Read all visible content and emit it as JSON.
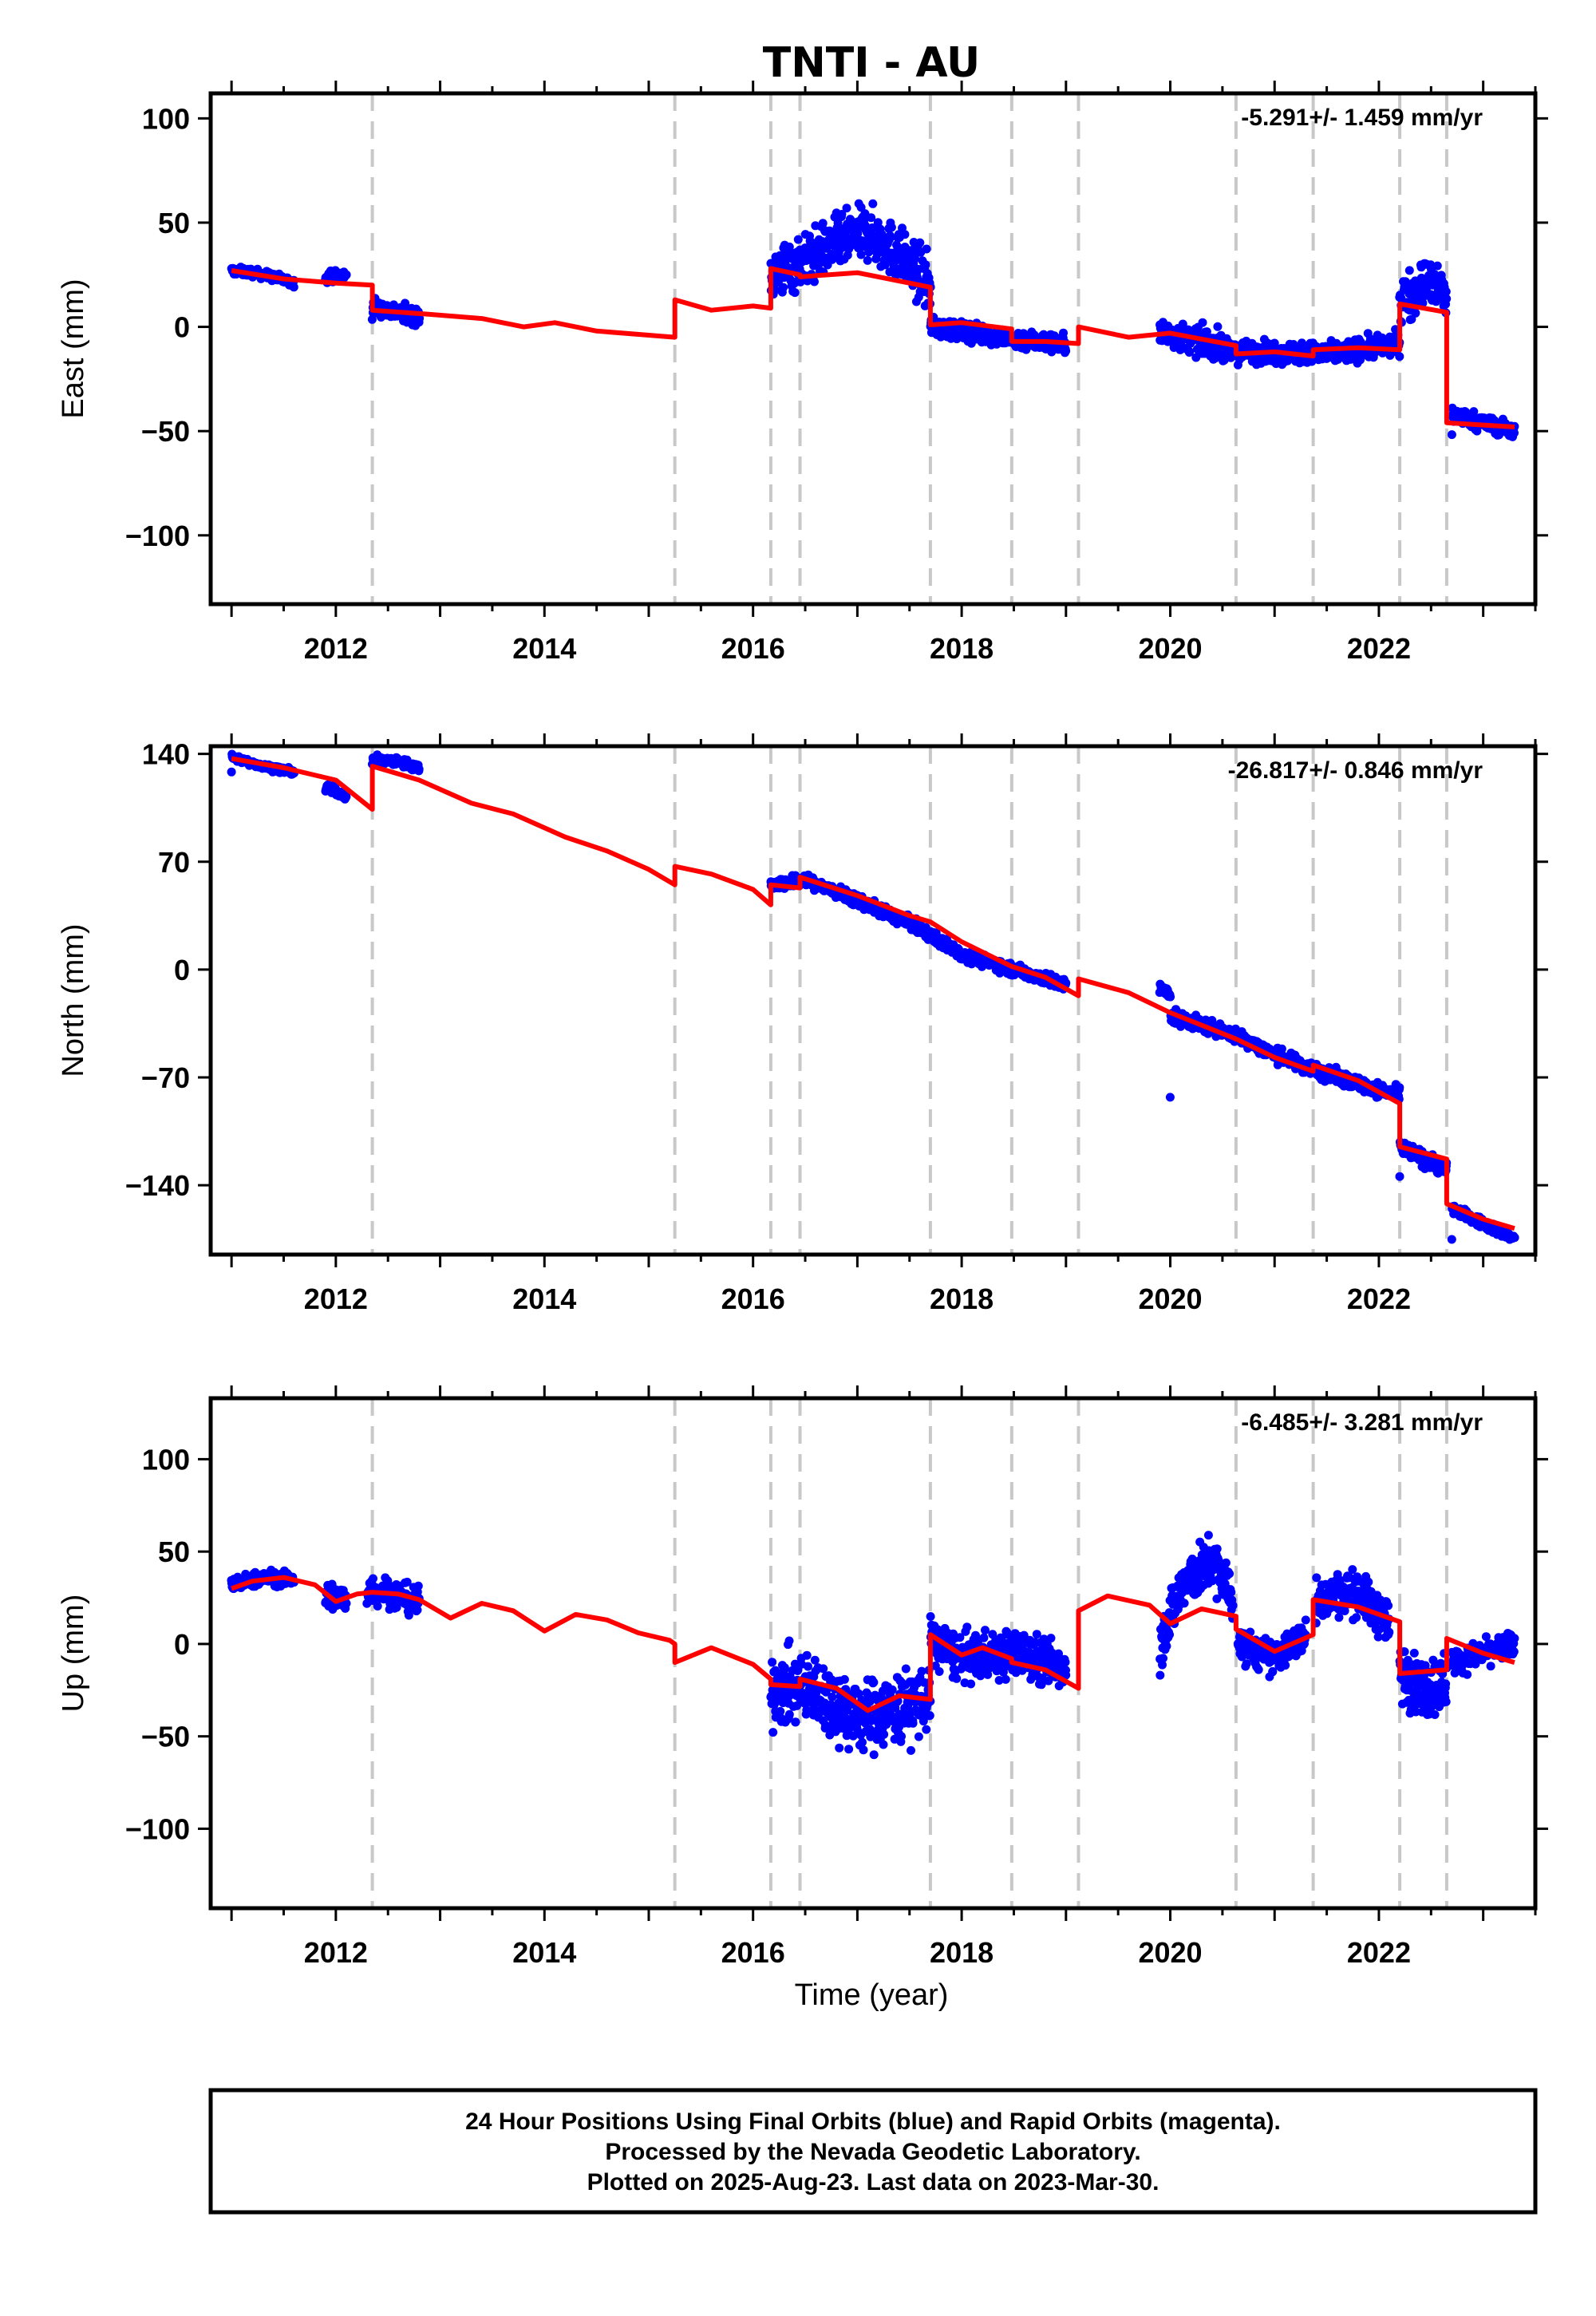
{
  "title": "TNTI - AU",
  "xlabel": "Time (year)",
  "colors": {
    "data": "#0000ff",
    "model": "#ff0000",
    "events": "#c8c8c8",
    "frame": "#000000"
  },
  "footer": {
    "line1": "24 Hour Positions Using Final Orbits (blue) and Rapid Orbits (magenta).",
    "line2": "Processed by the Nevada Geodetic Laboratory.",
    "line3": "Plotted on 2025-Aug-23. Last data on 2023-Mar-30."
  },
  "chart_data": [
    {
      "type": "scatter",
      "ylabel": "East (mm)",
      "rate_label": "-5.291+/- 1.459 mm/yr",
      "xlim": [
        2010.8,
        2023.5
      ],
      "ylim": [
        -133,
        112
      ],
      "x_ticks": [
        2012,
        2014,
        2016,
        2018,
        2020,
        2022
      ],
      "x_tick_labels": [
        "2012",
        "2014",
        "2016",
        "2018",
        "2020",
        "2022"
      ],
      "y_ticks": [
        -100,
        -50,
        0,
        50,
        100
      ],
      "y_tick_labels": [
        "−100",
        "−50",
        "0",
        "50",
        "100"
      ],
      "event_lines": [
        2012.35,
        2015.25,
        2016.17,
        2016.45,
        2017.7,
        2018.48,
        2019.12,
        2020.63,
        2021.37,
        2022.2,
        2022.65
      ],
      "data_segments": [
        {
          "x": [
            2011.0,
            2011.2,
            2011.4,
            2011.6
          ],
          "y": [
            27,
            26,
            24,
            21
          ],
          "spread": 3
        },
        {
          "x": [
            2011.9,
            2012.1
          ],
          "y": [
            24,
            25
          ],
          "spread": 4
        },
        {
          "x": [
            2012.35,
            2012.5,
            2012.8
          ],
          "y": [
            10,
            8,
            5
          ],
          "spread": 6
        },
        {
          "x": [
            2016.17,
            2016.5,
            2016.8,
            2017.1,
            2017.4,
            2017.7
          ],
          "y": [
            25,
            32,
            40,
            45,
            35,
            20
          ],
          "spread": 20
        },
        {
          "x": [
            2017.7,
            2018.0,
            2018.5,
            2019.0
          ],
          "y": [
            0,
            -2,
            -6,
            -8
          ],
          "spread": 7
        },
        {
          "x": [
            2019.9,
            2020.2,
            2020.5
          ],
          "y": [
            -3,
            -6,
            -9
          ],
          "spread": 10
        },
        {
          "x": [
            2020.5,
            2021.0,
            2021.5,
            2022.2
          ],
          "y": [
            -12,
            -12,
            -13,
            -8
          ],
          "spread": 8
        },
        {
          "x": [
            2022.2,
            2022.45,
            2022.65
          ],
          "y": [
            12,
            22,
            15
          ],
          "spread": 18
        },
        {
          "x": [
            2022.7,
            2023.3
          ],
          "y": [
            -42,
            -50
          ],
          "spread": 6
        }
      ],
      "model": {
        "x": [
          2011.0,
          2011.5,
          2012.0,
          2012.35,
          2012.35,
          2012.9,
          2013.4,
          2013.8,
          2014.1,
          2014.5,
          2015.0,
          2015.25,
          2015.25,
          2015.6,
          2016.0,
          2016.17,
          2016.17,
          2016.45,
          2016.45,
          2017.0,
          2017.7,
          2017.7,
          2018.0,
          2018.48,
          2018.48,
          2018.8,
          2019.12,
          2019.12,
          2019.6,
          2020.0,
          2020.63,
          2020.63,
          2021.0,
          2021.37,
          2021.37,
          2021.8,
          2022.2,
          2022.2,
          2022.65,
          2022.65,
          2023.3
        ],
        "y": [
          27,
          23,
          21,
          20,
          8,
          6,
          4,
          0,
          2,
          -2,
          -4,
          -5,
          13,
          8,
          10,
          9,
          28,
          25,
          24,
          26,
          19,
          1,
          2,
          -1,
          -7,
          -7,
          -8,
          0,
          -5,
          -3,
          -9,
          -13,
          -12,
          -14,
          -11,
          -10,
          -11,
          11,
          7,
          -46,
          -48
        ]
      }
    },
    {
      "type": "scatter",
      "ylabel": "North (mm)",
      "rate_label": "-26.817+/- 0.846 mm/yr",
      "xlim": [
        2010.8,
        2023.5
      ],
      "ylim": [
        -185,
        145
      ],
      "x_ticks": [
        2012,
        2014,
        2016,
        2018,
        2020,
        2022
      ],
      "x_tick_labels": [
        "2012",
        "2014",
        "2016",
        "2018",
        "2020",
        "2022"
      ],
      "y_ticks": [
        -140,
        -70,
        0,
        70,
        140
      ],
      "y_tick_labels": [
        "−140",
        "−70",
        "0",
        "70",
        "140"
      ],
      "event_lines": [
        2012.35,
        2015.25,
        2016.17,
        2016.45,
        2017.7,
        2018.48,
        2019.12,
        2020.63,
        2021.37,
        2022.2,
        2022.65
      ],
      "data_segments": [
        {
          "x": [
            2011.0,
            2011.3,
            2011.6
          ],
          "y": [
            138,
            132,
            128
          ],
          "spread": 3
        },
        {
          "x": [
            2011.9,
            2012.1
          ],
          "y": [
            118,
            113
          ],
          "spread": 4
        },
        {
          "x": [
            2012.35,
            2012.6,
            2012.8
          ],
          "y": [
            136,
            135,
            131
          ],
          "spread": 4
        },
        {
          "x": [
            2016.17,
            2016.5,
            2017.0,
            2017.5,
            2018.0,
            2018.5,
            2019.0
          ],
          "y": [
            55,
            58,
            45,
            30,
            10,
            0,
            -10
          ],
          "spread": 6
        },
        {
          "x": [
            2019.9,
            2020.0
          ],
          "y": [
            -10,
            -18
          ],
          "spread": 6
        },
        {
          "x": [
            2020.0,
            2020.6,
            2021.0,
            2021.5,
            2022.2
          ],
          "y": [
            -30,
            -42,
            -55,
            -68,
            -82
          ],
          "spread": 7
        },
        {
          "x": [
            2022.2,
            2022.5,
            2022.65
          ],
          "y": [
            -115,
            -125,
            -130
          ],
          "spread": 8
        },
        {
          "x": [
            2022.7,
            2023.3
          ],
          "y": [
            -155,
            -175
          ],
          "spread": 5
        }
      ],
      "model": {
        "x": [
          2011.0,
          2011.5,
          2012.0,
          2012.35,
          2012.35,
          2012.8,
          2013.3,
          2013.7,
          2014.2,
          2014.6,
          2015.0,
          2015.25,
          2015.25,
          2015.6,
          2016.0,
          2016.17,
          2016.17,
          2016.45,
          2016.45,
          2017.0,
          2017.5,
          2017.7,
          2018.0,
          2018.48,
          2018.8,
          2019.12,
          2019.12,
          2019.6,
          2020.0,
          2020.63,
          2021.0,
          2021.37,
          2021.37,
          2021.8,
          2022.2,
          2022.2,
          2022.65,
          2022.65,
          2023.0,
          2023.3
        ],
        "y": [
          137,
          131,
          123,
          104,
          132,
          123,
          108,
          101,
          86,
          77,
          65,
          55,
          67,
          62,
          52,
          42,
          55,
          53,
          60,
          48,
          35,
          31,
          18,
          2,
          -5,
          -17,
          -6,
          -15,
          -28,
          -45,
          -57,
          -66,
          -62,
          -72,
          -87,
          -115,
          -123,
          -152,
          -162,
          -168
        ]
      }
    },
    {
      "type": "scatter",
      "ylabel": "Up (mm)",
      "rate_label": "-6.485+/- 3.281 mm/yr",
      "xlim": [
        2010.8,
        2023.5
      ],
      "ylim": [
        -143,
        133
      ],
      "x_ticks": [
        2012,
        2014,
        2016,
        2018,
        2020,
        2022
      ],
      "x_tick_labels": [
        "2012",
        "2014",
        "2016",
        "2018",
        "2020",
        "2022"
      ],
      "y_ticks": [
        -100,
        -50,
        0,
        50,
        100
      ],
      "y_tick_labels": [
        "−100",
        "−50",
        "0",
        "50",
        "100"
      ],
      "event_lines": [
        2012.35,
        2015.25,
        2016.17,
        2016.45,
        2017.7,
        2018.48,
        2019.12,
        2020.63,
        2021.37,
        2022.2,
        2022.65
      ],
      "data_segments": [
        {
          "x": [
            2011.0,
            2011.3,
            2011.6
          ],
          "y": [
            32,
            36,
            35
          ],
          "spread": 6
        },
        {
          "x": [
            2011.9,
            2012.1
          ],
          "y": [
            26,
            24
          ],
          "spread": 12
        },
        {
          "x": [
            2012.3,
            2012.5,
            2012.8
          ],
          "y": [
            30,
            28,
            22
          ],
          "spread": 12
        },
        {
          "x": [
            2016.17,
            2016.6,
            2017.0,
            2017.4,
            2017.7
          ],
          "y": [
            -25,
            -25,
            -40,
            -35,
            -30
          ],
          "spread": 30
        },
        {
          "x": [
            2017.7,
            2018.0,
            2018.5,
            2019.0
          ],
          "y": [
            2,
            -8,
            -5,
            -12
          ],
          "spread": 20
        },
        {
          "x": [
            2019.9,
            2020.1,
            2020.4,
            2020.6
          ],
          "y": [
            0,
            30,
            45,
            25
          ],
          "spread": 22
        },
        {
          "x": [
            2020.65,
            2021.0,
            2021.3
          ],
          "y": [
            0,
            -8,
            5
          ],
          "spread": 14
        },
        {
          "x": [
            2021.4,
            2021.8,
            2022.1
          ],
          "y": [
            25,
            28,
            10
          ],
          "spread": 18
        },
        {
          "x": [
            2022.2,
            2022.45,
            2022.65
          ],
          "y": [
            -15,
            -25,
            -20
          ],
          "spread": 25
        },
        {
          "x": [
            2022.7,
            2023.3
          ],
          "y": [
            -10,
            0
          ],
          "spread": 10
        }
      ],
      "model": {
        "x": [
          2011.0,
          2011.2,
          2011.5,
          2011.8,
          2012.0,
          2012.2,
          2012.35,
          2012.6,
          2012.8,
          2013.1,
          2013.4,
          2013.7,
          2014.0,
          2014.3,
          2014.6,
          2014.9,
          2015.2,
          2015.25,
          2015.25,
          2015.6,
          2016.0,
          2016.17,
          2016.17,
          2016.45,
          2016.45,
          2016.8,
          2017.1,
          2017.4,
          2017.7,
          2017.7,
          2018.0,
          2018.2,
          2018.48,
          2018.48,
          2018.8,
          2019.12,
          2019.12,
          2019.4,
          2019.8,
          2020.0,
          2020.3,
          2020.63,
          2020.63,
          2021.0,
          2021.37,
          2021.37,
          2021.8,
          2022.2,
          2022.2,
          2022.65,
          2022.65,
          2023.0,
          2023.3
        ],
        "y": [
          30,
          34,
          36,
          32,
          23,
          27,
          28,
          27,
          24,
          14,
          22,
          18,
          7,
          16,
          13,
          6,
          2,
          0,
          -10,
          -2,
          -11,
          -19,
          -22,
          -23,
          -19,
          -24,
          -36,
          -28,
          -30,
          5,
          -6,
          -2,
          -8,
          -10,
          -14,
          -24,
          18,
          26,
          21,
          11,
          19,
          15,
          8,
          -4,
          5,
          24,
          20,
          12,
          -16,
          -14,
          3,
          -5,
          -10
        ]
      }
    }
  ]
}
